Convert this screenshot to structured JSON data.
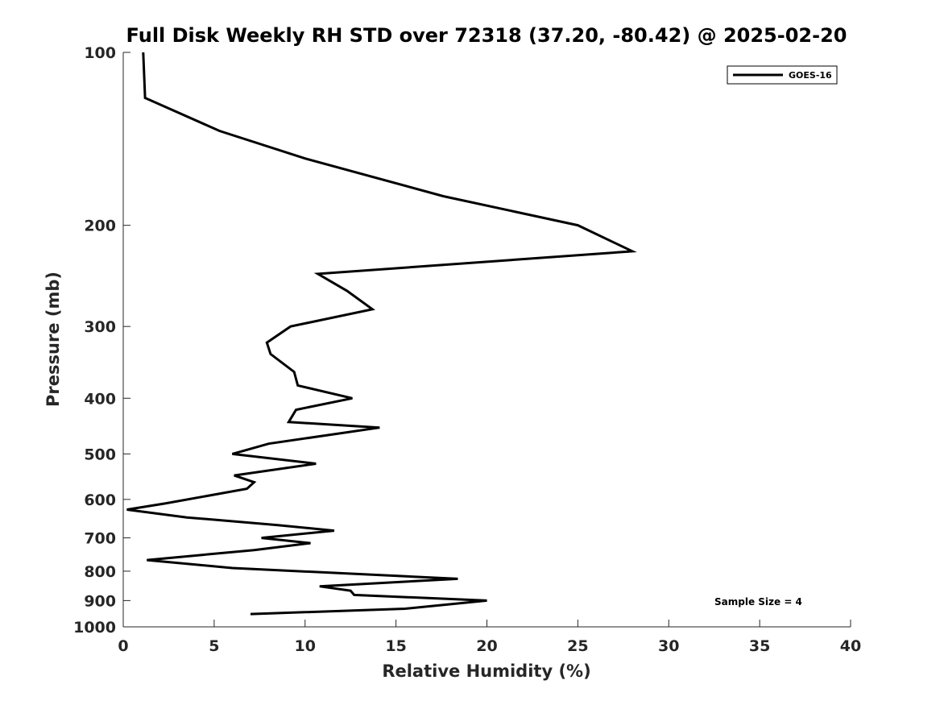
{
  "chart_data": {
    "type": "line",
    "title": "Full Disk Weekly RH STD over 72318 (37.20, -80.42) @ 2025-02-20",
    "xlabel": "Relative Humidity (%)",
    "ylabel": "Pressure (mb)",
    "xlim": [
      0,
      40
    ],
    "ylim": [
      100,
      1000
    ],
    "y_scale": "log",
    "y_reversed": true,
    "x_ticks": [
      "0",
      "5",
      "10",
      "15",
      "20",
      "25",
      "30",
      "35",
      "40"
    ],
    "y_ticks": [
      "100",
      "200",
      "300",
      "400",
      "500",
      "600",
      "700",
      "800",
      "900",
      "1000"
    ],
    "grid": false,
    "legend_position": "top-right",
    "annotation": "Sample Size = 4",
    "series": [
      {
        "name": "GOES-16",
        "color": "#000000",
        "x": [
          1.1,
          1.2,
          5.3,
          10.0,
          17.6,
          25.0,
          28.0,
          10.7,
          12.3,
          13.7,
          9.2,
          7.9,
          8.1,
          9.4,
          9.6,
          12.6,
          9.5,
          9.1,
          14.1,
          8.0,
          6.0,
          10.6,
          6.1,
          7.2,
          6.8,
          2.3,
          0.2,
          3.5,
          8.5,
          11.6,
          7.6,
          10.3,
          7.2,
          1.3,
          6.0,
          18.4,
          10.8,
          12.5,
          12.7,
          20.0,
          15.5,
          7.0
        ],
        "y": [
          100,
          120,
          137,
          153,
          178,
          200,
          222,
          243,
          260,
          280,
          300,
          320,
          335,
          360,
          380,
          400,
          419,
          440,
          450,
          480,
          500,
          520,
          545,
          560,
          575,
          610,
          625,
          645,
          665,
          680,
          700,
          715,
          735,
          765,
          790,
          825,
          850,
          865,
          880,
          900,
          930,
          950
        ]
      }
    ]
  }
}
